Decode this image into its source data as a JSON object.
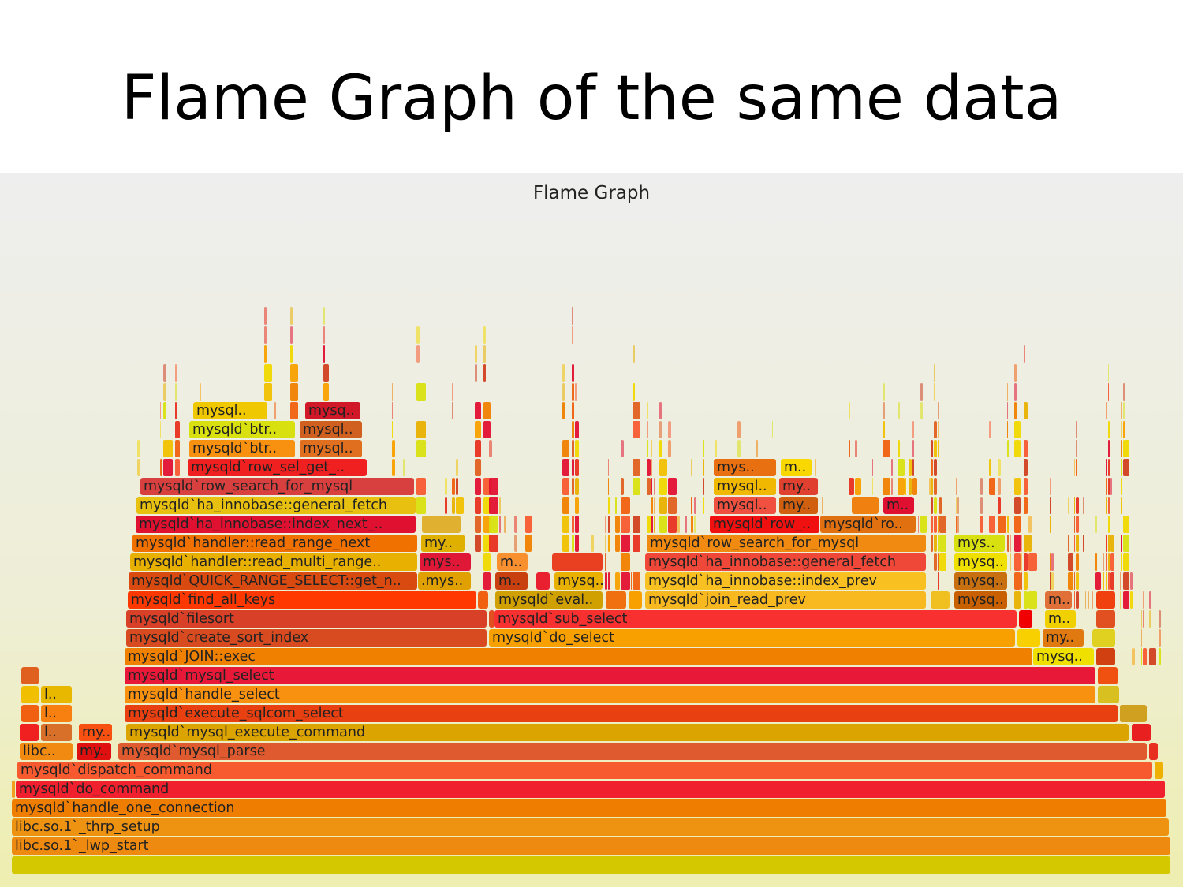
{
  "slide": {
    "title": "Flame Graph of the same data"
  },
  "chart_data": {
    "type": "flame",
    "title": "Flame Graph",
    "total_samples": 1470,
    "frames": [
      {
        "label": "",
        "depth": 0,
        "start": 0,
        "samples": 1470,
        "color": "#d4c800"
      },
      {
        "label": "libc.so.1`_lwp_start",
        "depth": 1,
        "start": 0,
        "samples": 1470,
        "color": "#ee8a10"
      },
      {
        "label": "libc.so.1`_thrp_setup",
        "depth": 2,
        "start": 0,
        "samples": 1468,
        "color": "#ee9212"
      },
      {
        "label": "mysqld`handle_one_connection",
        "depth": 3,
        "start": 0,
        "samples": 1465,
        "color": "#ee7d00"
      },
      {
        "label": "",
        "depth": 4,
        "start": 0,
        "samples": 4,
        "color": "#f0a020"
      },
      {
        "label": "mysqld`do_command",
        "depth": 4,
        "start": 5,
        "samples": 1458,
        "color": "#f0202e"
      },
      {
        "label": "mysqld`dispatch_command",
        "depth": 5,
        "start": 7,
        "samples": 1440,
        "color": "#f85a30"
      },
      {
        "label": "",
        "depth": 5,
        "start": 1449,
        "samples": 12,
        "color": "#f0b000"
      },
      {
        "label": "libc..",
        "depth": 6,
        "start": 10,
        "samples": 68,
        "color": "#f08a10"
      },
      {
        "label": "my..",
        "depth": 6,
        "start": 82,
        "samples": 45,
        "color": "#e01010"
      },
      {
        "label": "mysqld`mysql_parse",
        "depth": 6,
        "start": 135,
        "samples": 1305,
        "color": "#e05a30"
      },
      {
        "label": "",
        "depth": 6,
        "start": 1442,
        "samples": 12,
        "color": "#e83020"
      },
      {
        "label": "",
        "depth": 7,
        "start": 10,
        "samples": 25,
        "color": "#f02020"
      },
      {
        "label": "l..",
        "depth": 7,
        "start": 37,
        "samples": 40,
        "color": "#d8702a"
      },
      {
        "label": "my..",
        "depth": 7,
        "start": 85,
        "samples": 43,
        "color": "#f85010"
      },
      {
        "label": "mysqld`mysql_execute_command",
        "depth": 7,
        "start": 145,
        "samples": 1272,
        "color": "#dca400"
      },
      {
        "label": "",
        "depth": 7,
        "start": 1420,
        "samples": 25,
        "color": "#e82020"
      },
      {
        "label": "",
        "depth": 8,
        "start": 12,
        "samples": 23,
        "color": "#f06010"
      },
      {
        "label": "l..",
        "depth": 8,
        "start": 37,
        "samples": 40,
        "color": "#f88010"
      },
      {
        "label": "mysqld`execute_sqlcom_select",
        "depth": 8,
        "start": 143,
        "samples": 1260,
        "color": "#e84010"
      },
      {
        "label": "",
        "depth": 8,
        "start": 1405,
        "samples": 35,
        "color": "#d0a020"
      },
      {
        "label": "",
        "depth": 9,
        "start": 12,
        "samples": 23,
        "color": "#f0c000"
      },
      {
        "label": "l..",
        "depth": 9,
        "start": 37,
        "samples": 40,
        "color": "#e8b800"
      },
      {
        "label": "mysqld`handle_select",
        "depth": 9,
        "start": 143,
        "samples": 1232,
        "color": "#f89010"
      },
      {
        "label": "",
        "depth": 9,
        "start": 1377,
        "samples": 28,
        "color": "#d8c020"
      },
      {
        "label": "",
        "depth": 10,
        "start": 12,
        "samples": 23,
        "color": "#e06020"
      },
      {
        "label": "mysqld`mysql_select",
        "depth": 10,
        "start": 143,
        "samples": 1232,
        "color": "#e81838"
      },
      {
        "label": "",
        "depth": 10,
        "start": 1377,
        "samples": 26,
        "color": "#f05010"
      },
      {
        "label": "mysqld`JOIN::exec",
        "depth": 11,
        "start": 143,
        "samples": 1152,
        "color": "#f08000"
      },
      {
        "label": "mysq..",
        "depth": 11,
        "start": 1295,
        "samples": 78,
        "color": "#f0e000"
      },
      {
        "label": "",
        "depth": 11,
        "start": 1375,
        "samples": 25,
        "color": "#d04010"
      },
      {
        "label": "mysqld`create_sort_index",
        "depth": 12,
        "start": 145,
        "samples": 458,
        "color": "#d84b20"
      },
      {
        "label": "mysqld`do_select",
        "depth": 12,
        "start": 605,
        "samples": 668,
        "color": "#f8a000"
      },
      {
        "label": "",
        "depth": 12,
        "start": 1275,
        "samples": 30,
        "color": "#f8d000"
      },
      {
        "label": "my..",
        "depth": 12,
        "start": 1307,
        "samples": 53,
        "color": "#e07a10"
      },
      {
        "label": "",
        "depth": 12,
        "start": 1370,
        "samples": 30,
        "color": "#e0d020"
      },
      {
        "label": "mysqld`filesort",
        "depth": 13,
        "start": 145,
        "samples": 458,
        "color": "#d84028"
      },
      {
        "label": "",
        "depth": 13,
        "start": 605,
        "samples": 8,
        "color": "#e05020"
      },
      {
        "label": "mysqld`sub_select",
        "depth": 13,
        "start": 612,
        "samples": 663,
        "color": "#f83030"
      },
      {
        "label": "",
        "depth": 13,
        "start": 1277,
        "samples": 18,
        "color": "#f00000"
      },
      {
        "label": "m..",
        "depth": 13,
        "start": 1310,
        "samples": 40,
        "color": "#f0d000"
      },
      {
        "label": "",
        "depth": 13,
        "start": 1375,
        "samples": 25,
        "color": "#e05020"
      },
      {
        "label": "mysqld`find_all_keys",
        "depth": 14,
        "start": 147,
        "samples": 443,
        "color": "#ff3800"
      },
      {
        "label": "",
        "depth": 14,
        "start": 591,
        "samples": 14,
        "color": "#f06010"
      },
      {
        "label": "mysqld`eval..",
        "depth": 14,
        "start": 613,
        "samples": 137,
        "color": "#d0a000"
      },
      {
        "label": "",
        "depth": 14,
        "start": 753,
        "samples": 27,
        "color": "#f07010"
      },
      {
        "label": "",
        "depth": 14,
        "start": 782,
        "samples": 18,
        "color": "#f8a000"
      },
      {
        "label": "mysqld`join_read_prev",
        "depth": 14,
        "start": 803,
        "samples": 357,
        "color": "#f8b820"
      },
      {
        "label": "",
        "depth": 14,
        "start": 1165,
        "samples": 25,
        "color": "#f0c020"
      },
      {
        "label": "mysq..",
        "depth": 14,
        "start": 1195,
        "samples": 68,
        "color": "#c86000"
      },
      {
        "label": "m..",
        "depth": 14,
        "start": 1310,
        "samples": 35,
        "color": "#e07038"
      },
      {
        "label": "",
        "depth": 14,
        "start": 1375,
        "samples": 25,
        "color": "#f04010"
      },
      {
        "label": "mysqld`QUICK_RANGE_SELECT::get_n..",
        "depth": 15,
        "start": 148,
        "samples": 367,
        "color": "#d84a10"
      },
      {
        "label": ".mys..",
        "depth": 15,
        "start": 515,
        "samples": 68,
        "color": "#e0a000"
      },
      {
        "label": "m..",
        "depth": 15,
        "start": 613,
        "samples": 42,
        "color": "#c84010"
      },
      {
        "label": "",
        "depth": 15,
        "start": 665,
        "samples": 18,
        "color": "#e82030"
      },
      {
        "label": "mysq..",
        "depth": 15,
        "start": 688,
        "samples": 62,
        "color": "#e8b000"
      },
      {
        "label": "mysqld`ha_innobase::index_prev",
        "depth": 15,
        "start": 803,
        "samples": 357,
        "color": "#f8c020"
      },
      {
        "label": "mysq..",
        "depth": 15,
        "start": 1195,
        "samples": 68,
        "color": "#c87010"
      },
      {
        "label": "mysqld`handler::read_multi_range..",
        "depth": 16,
        "start": 150,
        "samples": 365,
        "color": "#e8b000"
      },
      {
        "label": "mys..",
        "depth": 16,
        "start": 517,
        "samples": 66,
        "color": "#e01838"
      },
      {
        "label": "m..",
        "depth": 16,
        "start": 615,
        "samples": 40,
        "color": "#f89030"
      },
      {
        "label": "",
        "depth": 16,
        "start": 685,
        "samples": 65,
        "color": "#e84020"
      },
      {
        "label": "mysqld`ha_innobase::general_fetch",
        "depth": 16,
        "start": 803,
        "samples": 357,
        "color": "#f04838"
      },
      {
        "label": "mysq..",
        "depth": 16,
        "start": 1195,
        "samples": 68,
        "color": "#f0e000"
      },
      {
        "label": "mysqld`handler::read_range_next",
        "depth": 17,
        "start": 153,
        "samples": 362,
        "color": "#f07000"
      },
      {
        "label": "my..",
        "depth": 17,
        "start": 519,
        "samples": 56,
        "color": "#e0b000"
      },
      {
        "label": "mysqld`row_search_for_mysql",
        "depth": 17,
        "start": 805,
        "samples": 355,
        "color": "#f08a10"
      },
      {
        "label": "mys..",
        "depth": 17,
        "start": 1195,
        "samples": 65,
        "color": "#d8e010"
      },
      {
        "label": "mysqld`ha_innobase::index_next_..",
        "depth": 18,
        "start": 157,
        "samples": 356,
        "color": "#e01030"
      },
      {
        "label": "",
        "depth": 18,
        "start": 520,
        "samples": 50,
        "color": "#e0b030"
      },
      {
        "label": "mysqld`row_..",
        "depth": 18,
        "start": 885,
        "samples": 140,
        "color": "#f01010"
      },
      {
        "label": "mysqld`ro..",
        "depth": 18,
        "start": 1025,
        "samples": 122,
        "color": "#e07010"
      },
      {
        "label": "mysqld`ha_innobase::general_fetch",
        "depth": 19,
        "start": 158,
        "samples": 355,
        "color": "#e8c010"
      },
      {
        "label": "mysql..",
        "depth": 19,
        "start": 890,
        "samples": 80,
        "color": "#f05040"
      },
      {
        "label": "my..",
        "depth": 19,
        "start": 973,
        "samples": 50,
        "color": "#d06010"
      },
      {
        "label": "",
        "depth": 19,
        "start": 1065,
        "samples": 35,
        "color": "#f08010"
      },
      {
        "label": "m..",
        "depth": 19,
        "start": 1105,
        "samples": 40,
        "color": "#e01030"
      },
      {
        "label": "mysqld`row_search_for_mysql",
        "depth": 20,
        "start": 163,
        "samples": 348,
        "color": "#d84040"
      },
      {
        "label": "mysql..",
        "depth": 20,
        "start": 890,
        "samples": 80,
        "color": "#f0b800"
      },
      {
        "label": "my..",
        "depth": 20,
        "start": 973,
        "samples": 50,
        "color": "#e04030"
      },
      {
        "label": "mysqld`row_sel_get_..",
        "depth": 21,
        "start": 223,
        "samples": 228,
        "color": "#f02020"
      },
      {
        "label": "mys..",
        "depth": 21,
        "start": 890,
        "samples": 80,
        "color": "#e87010"
      },
      {
        "label": "m..",
        "depth": 21,
        "start": 975,
        "samples": 40,
        "color": "#f8d800"
      },
      {
        "label": "mysqld`btr..",
        "depth": 22,
        "start": 225,
        "samples": 135,
        "color": "#f89010"
      },
      {
        "label": "mysql..",
        "depth": 22,
        "start": 365,
        "samples": 80,
        "color": "#e07020"
      },
      {
        "label": "mysqld`btr..",
        "depth": 23,
        "start": 225,
        "samples": 135,
        "color": "#d8e010"
      },
      {
        "label": "mysql..",
        "depth": 23,
        "start": 365,
        "samples": 80,
        "color": "#d06020"
      },
      {
        "label": "mysql..",
        "depth": 24,
        "start": 230,
        "samples": 95,
        "color": "#f0c800"
      },
      {
        "label": "mysq..",
        "depth": 24,
        "start": 372,
        "samples": 71,
        "color": "#d01828"
      }
    ],
    "palette": [
      "#f08000",
      "#e83020",
      "#f0c000",
      "#f85a30",
      "#d8e010",
      "#e01030",
      "#f8a000",
      "#e06020",
      "#f0d800",
      "#d04020",
      "#f06010",
      "#e8b000"
    ]
  }
}
